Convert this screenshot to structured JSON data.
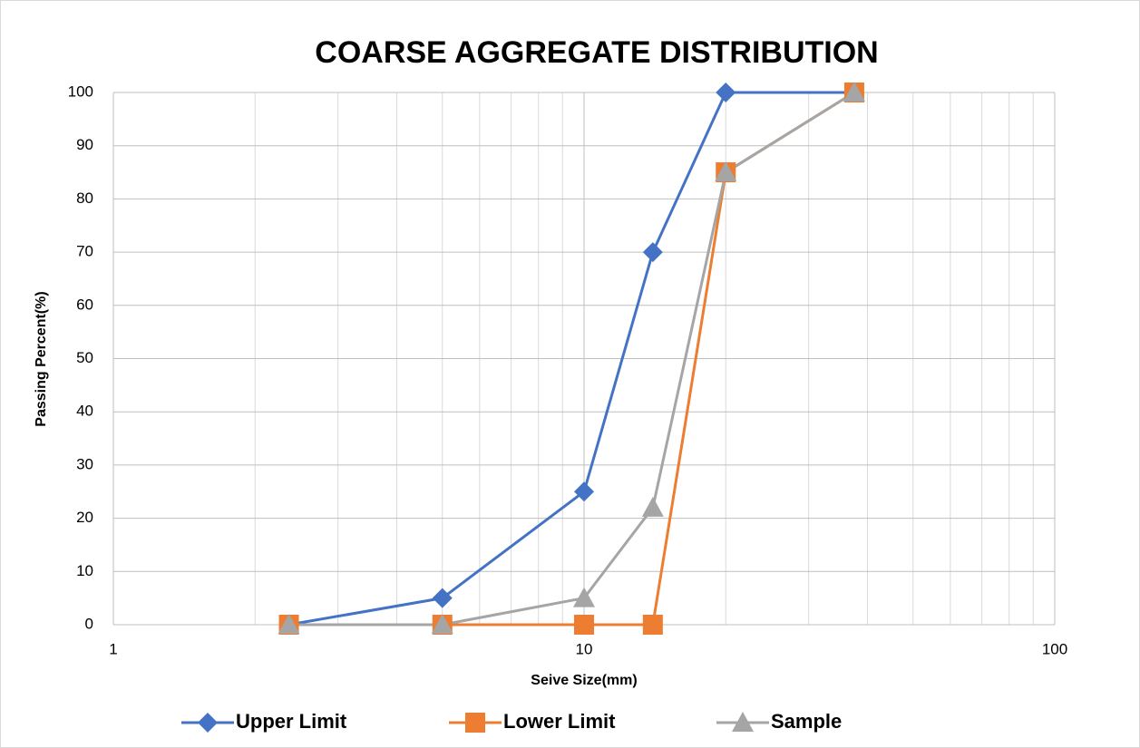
{
  "chart_data": {
    "type": "line",
    "title": "COARSE AGGREGATE DISTRIBUTION",
    "x_label": "Seive Size(mm)",
    "y_label": "Passing Percent(%)",
    "x": [
      2.36,
      5,
      10,
      14,
      20,
      37.5
    ],
    "series": [
      {
        "name": "Upper Limit",
        "color": "#4472c4",
        "marker": "diamond",
        "values": [
          0,
          5,
          25,
          70,
          100,
          100
        ]
      },
      {
        "name": "Lower Limit",
        "color": "#ed7d31",
        "marker": "square",
        "values": [
          0,
          0,
          0,
          0,
          85,
          100
        ]
      },
      {
        "name": "Sample",
        "color": "#a5a5a5",
        "marker": "triangle",
        "values": [
          0,
          0,
          5,
          22,
          85,
          100
        ]
      }
    ],
    "xlim": [
      1,
      100
    ],
    "xticks": [
      1,
      10,
      100
    ],
    "x_log": true,
    "ylim": [
      0,
      100
    ],
    "yticks": [
      0,
      10,
      20,
      30,
      40,
      50,
      60,
      70,
      80,
      90,
      100
    ],
    "grid": true,
    "minor_grid": true,
    "legend": "bottom"
  }
}
